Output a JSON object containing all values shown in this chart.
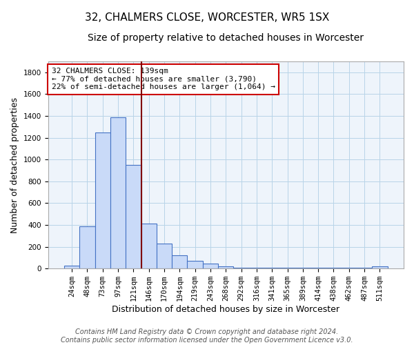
{
  "title1": "32, CHALMERS CLOSE, WORCESTER, WR5 1SX",
  "title2": "Size of property relative to detached houses in Worcester",
  "xlabel": "Distribution of detached houses by size in Worcester",
  "ylabel": "Number of detached properties",
  "categories": [
    "24sqm",
    "48sqm",
    "73sqm",
    "97sqm",
    "121sqm",
    "146sqm",
    "170sqm",
    "194sqm",
    "219sqm",
    "243sqm",
    "268sqm",
    "292sqm",
    "316sqm",
    "341sqm",
    "365sqm",
    "389sqm",
    "414sqm",
    "438sqm",
    "462sqm",
    "487sqm",
    "511sqm"
  ],
  "values": [
    25,
    390,
    1250,
    1390,
    950,
    415,
    230,
    120,
    70,
    45,
    20,
    10,
    10,
    10,
    10,
    5,
    5,
    5,
    5,
    5,
    20
  ],
  "bar_color": "#c9daf8",
  "bar_edge_color": "#4472c4",
  "vline_x": 4.5,
  "vline_color": "#800000",
  "annotation_text": "32 CHALMERS CLOSE: 139sqm\n← 77% of detached houses are smaller (3,790)\n22% of semi-detached houses are larger (1,064) →",
  "annotation_box_color": "white",
  "annotation_box_edge": "#cc0000",
  "footnote": "Contains HM Land Registry data © Crown copyright and database right 2024.\nContains public sector information licensed under the Open Government Licence v3.0.",
  "ylim": [
    0,
    1900
  ],
  "yticks": [
    0,
    200,
    400,
    600,
    800,
    1000,
    1200,
    1400,
    1600,
    1800
  ],
  "title1_fontsize": 11,
  "title2_fontsize": 10,
  "xlabel_fontsize": 9,
  "ylabel_fontsize": 9,
  "tick_fontsize": 7.5,
  "annot_fontsize": 8,
  "footnote_fontsize": 7
}
